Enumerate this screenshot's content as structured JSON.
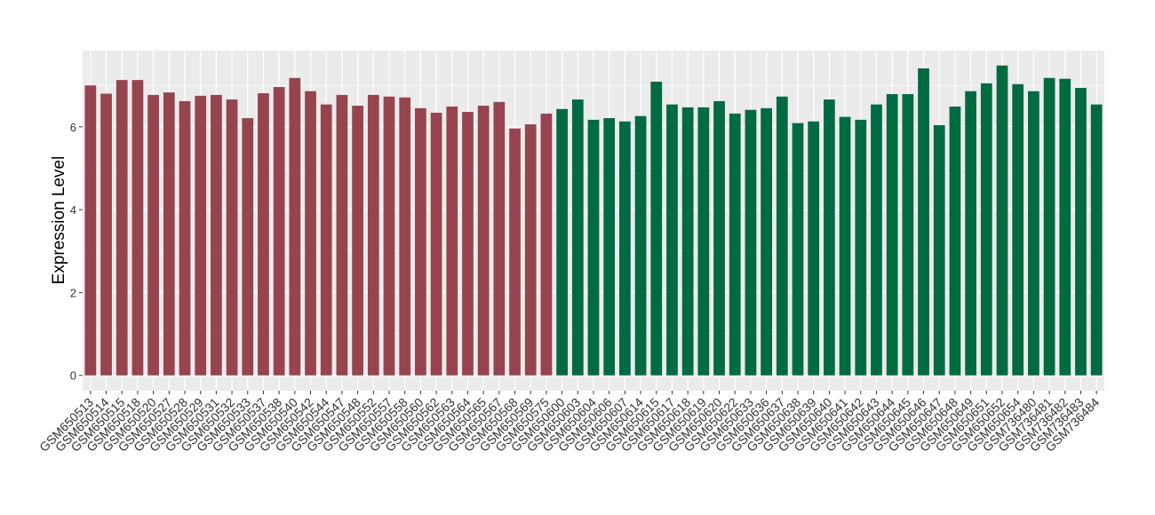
{
  "chart_data": {
    "type": "bar",
    "y_label": "Expression Level",
    "categories": [
      "GSM650513",
      "GSM650514",
      "GSM650515",
      "GSM650518",
      "GSM650520",
      "GSM650527",
      "GSM650528",
      "GSM650529",
      "GSM650531",
      "GSM650532",
      "GSM650533",
      "GSM650537",
      "GSM650538",
      "GSM650540",
      "GSM650542",
      "GSM650544",
      "GSM650547",
      "GSM650548",
      "GSM650552",
      "GSM650557",
      "GSM650558",
      "GSM650560",
      "GSM650562",
      "GSM650563",
      "GSM650564",
      "GSM650565",
      "GSM650567",
      "GSM650568",
      "GSM650569",
      "GSM650575",
      "GSM650600",
      "GSM650603",
      "GSM650604",
      "GSM650606",
      "GSM650607",
      "GSM650614",
      "GSM650615",
      "GSM650617",
      "GSM650618",
      "GSM650619",
      "GSM650620",
      "GSM650622",
      "GSM650633",
      "GSM650636",
      "GSM650637",
      "GSM650638",
      "GSM650639",
      "GSM650640",
      "GSM650641",
      "GSM650642",
      "GSM650643",
      "GSM650644",
      "GSM650645",
      "GSM650646",
      "GSM650647",
      "GSM650648",
      "GSM650649",
      "GSM650651",
      "GSM650652",
      "GSM650654",
      "GSM736480",
      "GSM736481",
      "GSM736482",
      "GSM736483",
      "GSM736484"
    ],
    "values": [
      7.0,
      6.8,
      7.13,
      7.13,
      6.77,
      6.83,
      6.62,
      6.75,
      6.77,
      6.66,
      6.21,
      6.81,
      6.96,
      7.18,
      6.86,
      6.54,
      6.77,
      6.51,
      6.77,
      6.73,
      6.71,
      6.45,
      6.34,
      6.49,
      6.36,
      6.51,
      6.6,
      5.96,
      6.06,
      6.32,
      6.43,
      6.66,
      6.17,
      6.21,
      6.13,
      6.26,
      7.09,
      6.54,
      6.47,
      6.47,
      6.62,
      6.32,
      6.41,
      6.45,
      6.73,
      6.09,
      6.13,
      6.66,
      6.24,
      6.17,
      6.54,
      6.79,
      6.79,
      7.41,
      6.04,
      6.49,
      6.86,
      7.05,
      7.48,
      7.03,
      6.86,
      7.18,
      7.16,
      6.94,
      6.54
    ],
    "bar_colors": [
      "#96444f",
      "#96444f",
      "#96444f",
      "#96444f",
      "#96444f",
      "#96444f",
      "#96444f",
      "#96444f",
      "#96444f",
      "#96444f",
      "#96444f",
      "#96444f",
      "#96444f",
      "#96444f",
      "#96444f",
      "#96444f",
      "#96444f",
      "#96444f",
      "#96444f",
      "#96444f",
      "#96444f",
      "#96444f",
      "#96444f",
      "#96444f",
      "#96444f",
      "#96444f",
      "#96444f",
      "#96444f",
      "#96444f",
      "#96444f",
      "#006a43",
      "#006a43",
      "#006a43",
      "#006a43",
      "#006a43",
      "#006a43",
      "#006a43",
      "#006a43",
      "#006a43",
      "#006a43",
      "#006a43",
      "#006a43",
      "#006a43",
      "#006a43",
      "#006a43",
      "#006a43",
      "#006a43",
      "#006a43",
      "#006a43",
      "#006a43",
      "#006a43",
      "#006a43",
      "#006a43",
      "#006a43",
      "#006a43",
      "#006a43",
      "#006a43",
      "#006a43",
      "#006a43",
      "#006a43",
      "#006a43",
      "#006a43",
      "#006a43",
      "#006a43",
      "#006a43"
    ],
    "ylim": [
      -0.37,
      7.84
    ],
    "yticks": [
      0,
      2,
      4,
      6
    ],
    "minor_yticks": [
      1,
      3,
      5,
      7
    ],
    "grid": true
  }
}
